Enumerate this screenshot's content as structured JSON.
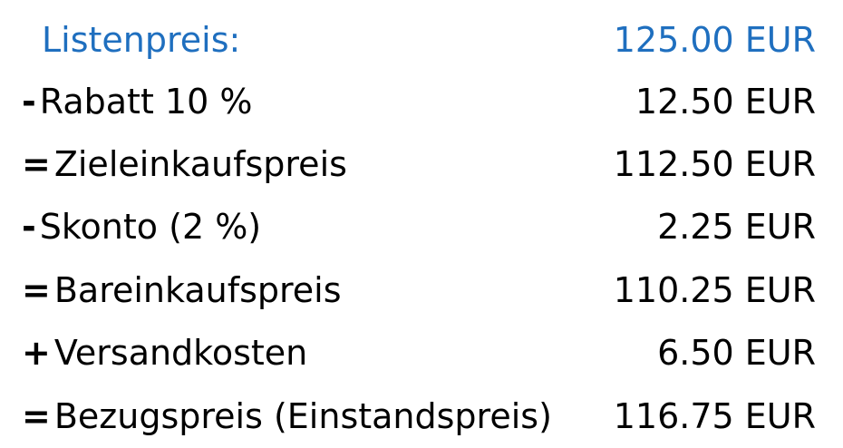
{
  "colors": {
    "highlight": "#1f6fbf",
    "text": "#000000",
    "background": "#ffffff"
  },
  "rows": [
    {
      "operator": "",
      "label": "Listenpreis:",
      "amount": "125.00 EUR"
    },
    {
      "operator": "-",
      "label": "Rabatt 10 %",
      "amount": "12.50 EUR"
    },
    {
      "operator": "=",
      "label": "Zieleinkaufspreis",
      "amount": "112.50 EUR"
    },
    {
      "operator": "-",
      "label": "Skonto (2 %)",
      "amount": "2.25 EUR"
    },
    {
      "operator": "=",
      "label": "Bareinkaufspreis",
      "amount": "110.25 EUR"
    },
    {
      "operator": "+",
      "label": "Versandkosten",
      "amount": "6.50 EUR"
    },
    {
      "operator": "=",
      "label": "Bezugspreis (Einstandspreis)",
      "amount": "116.75 EUR"
    }
  ]
}
